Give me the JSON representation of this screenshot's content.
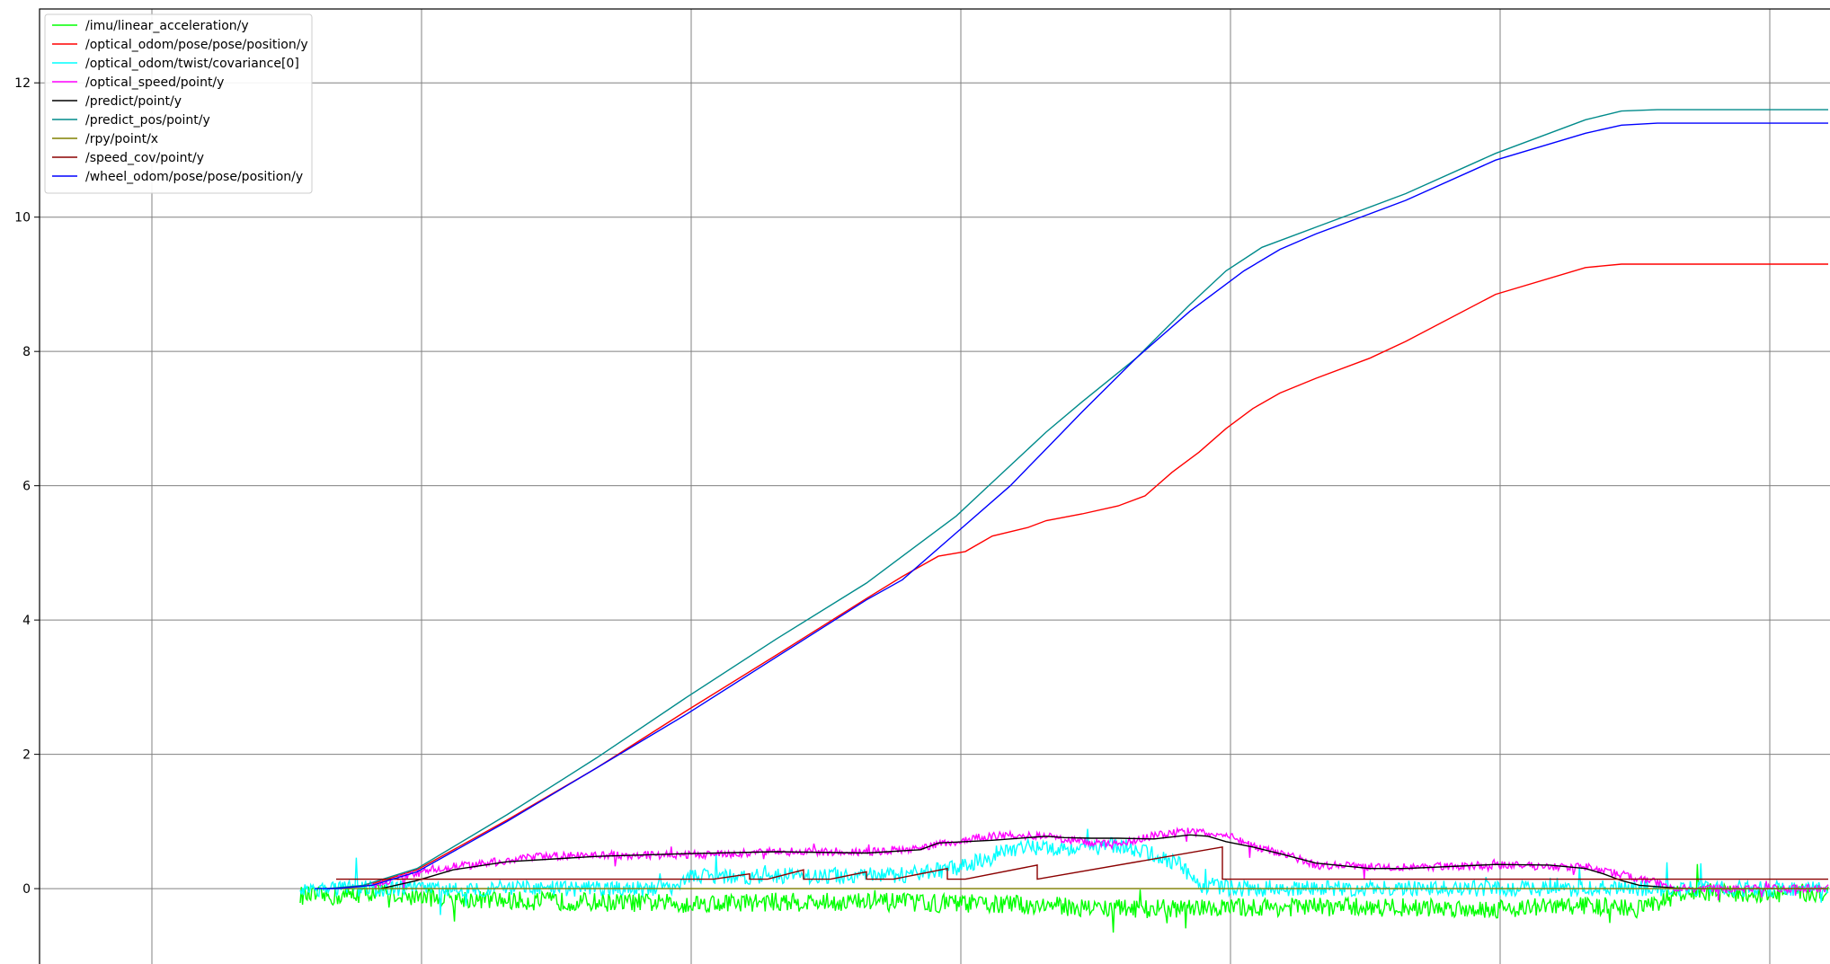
{
  "chart_data": {
    "type": "line",
    "title": "",
    "xlabel": "",
    "ylabel": "",
    "xlim": [
      0,
      100
    ],
    "ylim": [
      -1.35,
      13.1
    ],
    "yticks": [
      0,
      2,
      4,
      6,
      8,
      10,
      12
    ],
    "y_tick_labels": [
      "0",
      "2",
      "4",
      "6",
      "8",
      "10",
      "12"
    ],
    "xgrid": [
      6.25,
      21.25,
      36.25,
      51.25,
      66.25,
      81.25,
      96.25
    ],
    "grid": true,
    "legend_position": "top-left",
    "series": [
      {
        "name": "/imu/linear_acceleration/y",
        "color": "#00ff00",
        "style": "noisy",
        "noise": 0.14,
        "x": [
          14.5,
          16.5,
          18.5,
          21,
          26,
          31,
          36,
          41,
          46,
          51,
          56,
          58,
          61,
          64,
          67,
          71,
          76,
          81,
          86,
          89,
          91,
          93,
          96,
          99.5
        ],
        "y": [
          -0.1,
          -0.12,
          -0.05,
          -0.12,
          -0.18,
          -0.2,
          -0.22,
          -0.2,
          -0.2,
          -0.22,
          -0.25,
          -0.28,
          -0.3,
          -0.3,
          -0.28,
          -0.27,
          -0.28,
          -0.3,
          -0.25,
          -0.3,
          -0.1,
          -0.06,
          -0.08,
          -0.06
        ]
      },
      {
        "name": "/optical_odom/pose/pose/position/y",
        "color": "#ff0000",
        "style": "line",
        "x": [
          16,
          18,
          21,
          26,
          31,
          36,
          41,
          46,
          48,
          50,
          51.5,
          53,
          55,
          56,
          58,
          60,
          61.5,
          63,
          64.5,
          66,
          67.5,
          69,
          71,
          74,
          76,
          81,
          86,
          88,
          90,
          92,
          95,
          99.5
        ],
        "y": [
          0,
          0.03,
          0.28,
          1.02,
          1.8,
          2.65,
          3.48,
          4.32,
          4.65,
          4.95,
          5.02,
          5.25,
          5.38,
          5.48,
          5.58,
          5.7,
          5.85,
          6.2,
          6.5,
          6.85,
          7.15,
          7.38,
          7.6,
          7.9,
          8.15,
          8.85,
          9.25,
          9.3,
          9.3,
          9.3,
          9.3,
          9.3
        ]
      },
      {
        "name": "/optical_odom/twist/covariance[0]",
        "color": "#00ffff",
        "style": "noisy",
        "noise": 0.12,
        "x": [
          14.5,
          35,
          36,
          48,
          51,
          52,
          54,
          56,
          58,
          60,
          62,
          63.5,
          64.5,
          66,
          67,
          70,
          81,
          92,
          99.5
        ],
        "y": [
          0,
          0,
          0.18,
          0.2,
          0.3,
          0.4,
          0.6,
          0.62,
          0.6,
          0.65,
          0.5,
          0.35,
          0.05,
          0.02,
          0,
          0,
          0,
          0,
          0
        ]
      },
      {
        "name": "/optical_speed/point/y",
        "color": "#ff00ff",
        "style": "noisy",
        "noise": 0.06,
        "x": [
          18.5,
          20,
          22,
          24,
          26,
          28,
          31,
          36,
          41,
          46,
          49,
          50,
          52,
          54,
          56,
          58,
          60,
          62,
          64,
          66,
          68,
          70,
          71,
          76,
          81,
          86,
          89,
          91,
          92,
          93,
          94,
          99.5
        ],
        "y": [
          0.02,
          0.15,
          0.3,
          0.35,
          0.42,
          0.48,
          0.5,
          0.5,
          0.55,
          0.55,
          0.6,
          0.65,
          0.75,
          0.8,
          0.78,
          0.7,
          0.65,
          0.8,
          0.85,
          0.8,
          0.6,
          0.45,
          0.35,
          0.32,
          0.35,
          0.32,
          0.15,
          0.02,
          0,
          0,
          0,
          0
        ]
      },
      {
        "name": "/predict/point/y",
        "color": "#000000",
        "style": "line",
        "x": [
          19,
          21,
          23,
          26,
          31,
          36,
          41,
          46,
          49,
          50,
          53,
          56,
          57,
          58.5,
          60,
          62,
          64,
          65,
          66,
          67.5,
          69,
          71,
          74,
          76,
          81,
          84,
          86,
          87,
          88,
          89,
          91,
          92,
          93,
          94,
          99.5
        ],
        "y": [
          0,
          0.12,
          0.28,
          0.4,
          0.48,
          0.52,
          0.55,
          0.53,
          0.58,
          0.68,
          0.72,
          0.78,
          0.76,
          0.75,
          0.75,
          0.74,
          0.8,
          0.78,
          0.7,
          0.62,
          0.52,
          0.38,
          0.3,
          0.3,
          0.36,
          0.35,
          0.3,
          0.22,
          0.12,
          0.05,
          0.01,
          0,
          0,
          0,
          0
        ]
      },
      {
        "name": "/predict_pos/point/y",
        "color": "#008b8b",
        "style": "line",
        "x": [
          16,
          18,
          21,
          26,
          31,
          36,
          41,
          46,
          51,
          53,
          56,
          58,
          61,
          64,
          66,
          68,
          71,
          76,
          81,
          86,
          88,
          90,
          92,
          95,
          99.5
        ],
        "y": [
          0,
          0.05,
          0.3,
          1.1,
          1.95,
          2.85,
          3.72,
          4.55,
          5.55,
          6.05,
          6.8,
          7.25,
          7.9,
          8.7,
          9.2,
          9.55,
          9.85,
          10.35,
          10.95,
          11.45,
          11.58,
          11.6,
          11.6,
          11.6,
          11.6
        ]
      },
      {
        "name": "/rpy/point/x",
        "color": "#808000",
        "style": "line",
        "x": [
          16,
          40,
          60,
          80,
          92,
          94,
          99.5
        ],
        "y": [
          0,
          0,
          0,
          0,
          0,
          0,
          0
        ]
      },
      {
        "name": "/speed_cov/point/y",
        "color": "#8b0000",
        "style": "sawtooth",
        "base": 0.14,
        "x": [
          16.5,
          99.5
        ],
        "y": [
          0.14,
          0.14
        ],
        "ramps": [
          {
            "x0": 37.5,
            "x1": 39.5,
            "peak": 0.22
          },
          {
            "x0": 40.5,
            "x1": 42.5,
            "peak": 0.28
          },
          {
            "x0": 44,
            "x1": 46,
            "peak": 0.25
          },
          {
            "x0": 47.5,
            "x1": 50.5,
            "peak": 0.3
          },
          {
            "x0": 51.5,
            "x1": 55.5,
            "peak": 0.35
          },
          {
            "x0": 55.5,
            "x1": 65.8,
            "peak": 0.62
          }
        ]
      },
      {
        "name": "/wheel_odom/pose/pose/position/y",
        "color": "#0000ff",
        "style": "line",
        "x": [
          15.3,
          16.5,
          18.5,
          21,
          26,
          31,
          36,
          41,
          46,
          48,
          51,
          54,
          56,
          58,
          61,
          64,
          67,
          69,
          71,
          74,
          76,
          81,
          86,
          88,
          90,
          92,
          95,
          99.5
        ],
        "y": [
          0,
          0,
          0.05,
          0.25,
          1.0,
          1.8,
          2.6,
          3.45,
          4.3,
          4.6,
          5.3,
          6.0,
          6.55,
          7.1,
          7.9,
          8.6,
          9.2,
          9.52,
          9.75,
          10.05,
          10.25,
          10.85,
          11.25,
          11.37,
          11.4,
          11.4,
          11.4,
          11.4
        ]
      }
    ]
  }
}
